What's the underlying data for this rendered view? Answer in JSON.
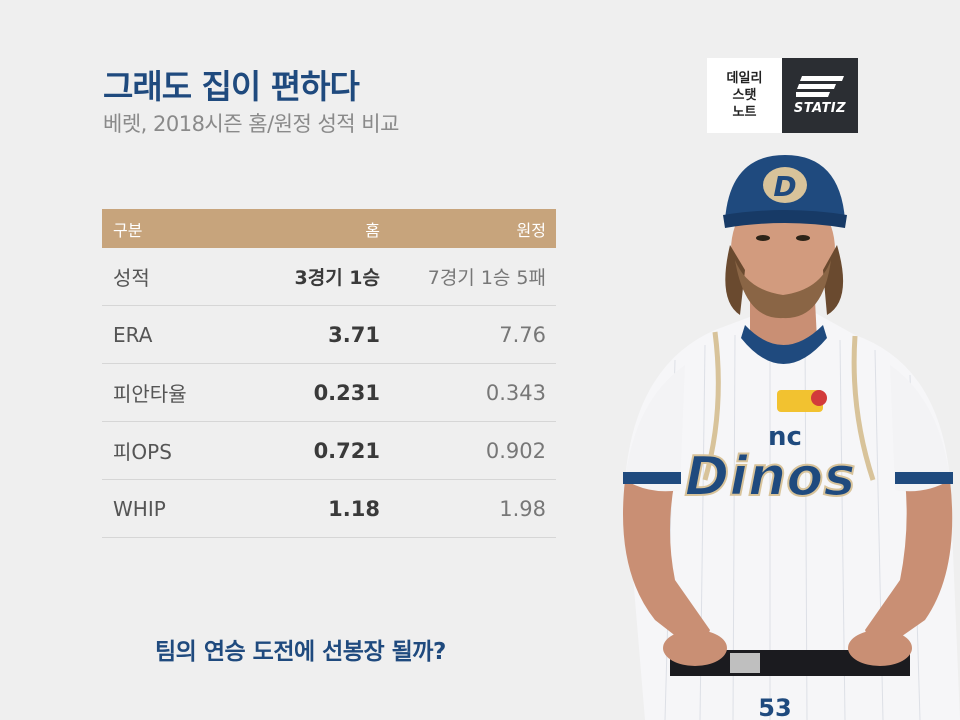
{
  "header": {
    "title": "그래도 집이 편하다",
    "subtitle": "베렛, 2018시즌 홈/원정 성적 비교"
  },
  "logo": {
    "korean_lines": [
      "데일리",
      "스탯",
      "노트"
    ],
    "brand": "STATIZ"
  },
  "table": {
    "headers": [
      "구분",
      "홈",
      "원정"
    ],
    "rows": [
      {
        "label": "성적",
        "home": "3경기 1승",
        "away": "7경기 1승 5패"
      },
      {
        "label": "ERA",
        "home": "3.71",
        "away": "7.76"
      },
      {
        "label": "피안타율",
        "home": "0.231",
        "away": "0.343"
      },
      {
        "label": "피OPS",
        "home": "0.721",
        "away": "0.902"
      },
      {
        "label": "WHIP",
        "home": "1.18",
        "away": "1.98"
      }
    ]
  },
  "footer": {
    "question": "팀의 연승 도전에 선봉장 될까?"
  },
  "player_image": {
    "cap_letter": "D",
    "jersey_text": "Dinos",
    "jersey_small": "nc",
    "number": "53"
  },
  "colors": {
    "title": "#1f4a7e",
    "header_bg": "#c7a47c",
    "logo_dark": "#2b2e33",
    "background": "#efefef"
  }
}
